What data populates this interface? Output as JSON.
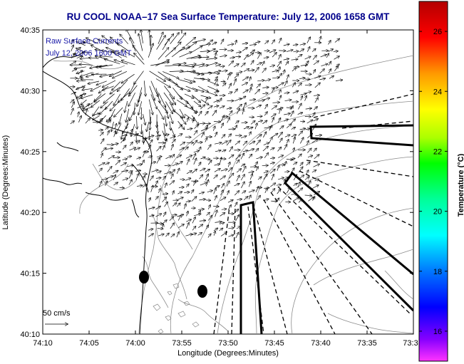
{
  "title": "RU COOL  NOAA–17  Sea Surface Temperature:  July 12, 2006 1658 GMT",
  "legend": {
    "line1": "Raw Surface Currents",
    "line2": "July 12, 2006 1600 GMT",
    "scale_label": "50 cm/s"
  },
  "colors": {
    "title": "#00008b",
    "legend_text": "#1a1aa8",
    "coast": "#000000",
    "bathy": "#888888"
  },
  "chart_data": {
    "type": "map",
    "xlabel": "Longitude (Degrees:Minutes)",
    "ylabel": "Latitude (Degrees:Minutes)",
    "x_ticks": [
      "74:10",
      "74:05",
      "74:00",
      "73:55",
      "73:50",
      "73:45",
      "73:40",
      "73:35",
      "73:3"
    ],
    "y_ticks": [
      "40:10",
      "40:15",
      "40:20",
      "40:25",
      "40:30",
      "40:35"
    ],
    "colorbar": {
      "label": "Temperature (°C)",
      "range": [
        15,
        27
      ],
      "ticks": [
        "16",
        "18",
        "20",
        "22",
        "24",
        "26"
      ],
      "tick_values": [
        16,
        18,
        20,
        22,
        24,
        26
      ]
    },
    "markers": [
      {
        "name": "dot-1",
        "lon_min": -4.4,
        "lat_min": 14.7
      },
      {
        "name": "dot-2",
        "lon_min": -2.1,
        "lat_min": 13.5
      }
    ]
  }
}
